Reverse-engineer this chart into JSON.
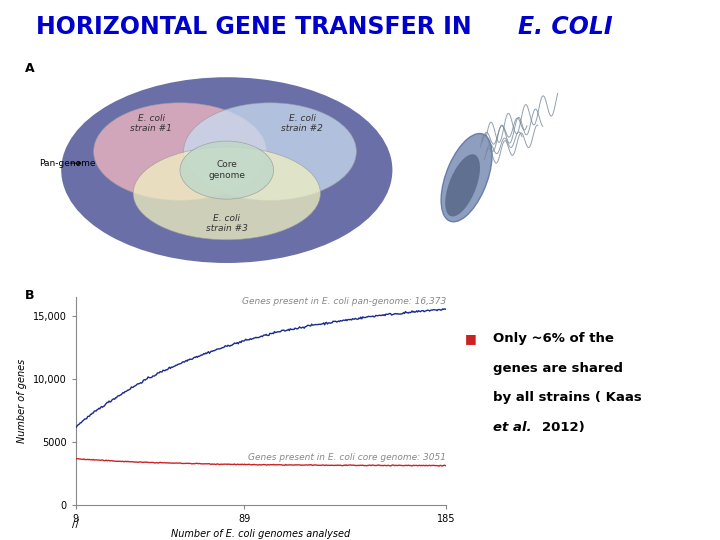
{
  "title_regular": "HORIZONTAL GENE TRANSFER IN ",
  "title_italic": "E. COLI",
  "title_color": "#0000CC",
  "title_fontsize": 17,
  "bg_color": "#FFFFFF",
  "label_A": "A",
  "label_B": "B",
  "pan_genome_label": "Pan-genome",
  "strain1_label": "E. coli\nstrain #1",
  "strain2_label": "E. coli\nstrain #2",
  "strain3_label": "E. coli\nstrain #3",
  "core_label": "Core\ngenome",
  "pan_genome_color": "#6B6FA8",
  "strain1_color": "#F4B8C1",
  "strain2_color": "#C8DCF0",
  "strain3_color": "#F0F0C0",
  "core_color": "#C0D8C8",
  "pan_line_label": "Genes present in E. coli pan-genome: 16,373",
  "core_line_label": "Genes present in E. coli core genome: 3051",
  "pan_line_color": "#1B2A8C",
  "core_line_color": "#CC2222",
  "xlabel": "Number of E. coli genomes analysed",
  "ylabel": "Number of genes",
  "x_ticks": [
    9,
    89,
    185
  ],
  "y_ticks": [
    0,
    5000,
    10000,
    15000
  ],
  "bullet_color": "#CC2222",
  "bullet_text_line1": "Only ~6% of the",
  "bullet_text_line2": "genes are shared",
  "bullet_text_line3": "by all strains ( Kaas",
  "bullet_text_line4": "2012)",
  "bullet_italic_word": "et al.",
  "annotation_fontsize": 6.5,
  "bact_body_color": "#8899BB",
  "bact_dark_color": "#334466"
}
